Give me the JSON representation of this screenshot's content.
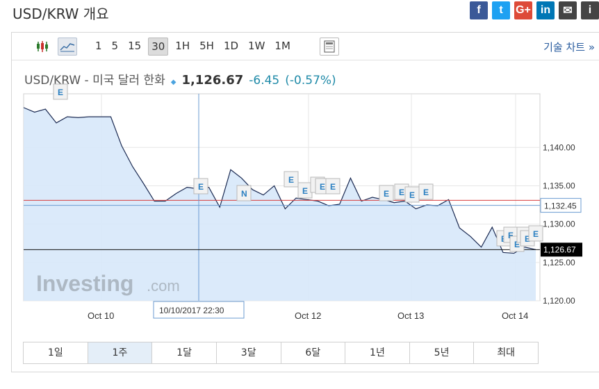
{
  "page": {
    "title": "USD/KRW 개요"
  },
  "social": [
    {
      "name": "facebook-icon",
      "glyph": "f",
      "color": "#3b5998"
    },
    {
      "name": "twitter-icon",
      "glyph": "t",
      "color": "#1da1f2"
    },
    {
      "name": "google-plus-icon",
      "glyph": "G+",
      "color": "#dd4b39"
    },
    {
      "name": "linkedin-icon",
      "glyph": "in",
      "color": "#0077b5"
    },
    {
      "name": "email-icon",
      "glyph": "✉",
      "color": "#444444"
    },
    {
      "name": "info-icon",
      "glyph": "i",
      "color": "#444444"
    }
  ],
  "toolbar": {
    "intervals": [
      "1",
      "5",
      "15",
      "30",
      "1H",
      "5H",
      "1D",
      "1W",
      "1M"
    ],
    "active_interval": "30",
    "technical_chart": "기술 차트 »"
  },
  "quote": {
    "name": "USD/KRW - 미국 달러 한화",
    "price": "1,126.67",
    "change": "-6.45",
    "change_pct": "(-0.57%)"
  },
  "chart_data": {
    "type": "area",
    "yticks": [
      "1,140.00",
      "1,135.00",
      "1,130.00",
      "1,125.00",
      "1,120.00"
    ],
    "ylim": [
      1120,
      1147
    ],
    "xticks": [
      "Oct 10",
      "Oct 12",
      "Oct 13",
      "Oct 14"
    ],
    "series": [
      {
        "values": [
          1145.2,
          1144.6,
          1145.0,
          1143.2,
          1144.0,
          1143.9,
          1144.0,
          1144.0,
          1144.0,
          1140.2,
          1137.5,
          1135.3,
          1133.0,
          1133.0,
          1134.0,
          1134.8,
          1134.6,
          1134.8,
          1132.2,
          1137.1,
          1136.0,
          1134.5,
          1133.8,
          1135.0,
          1132.0,
          1133.4,
          1133.2,
          1133.0,
          1132.4,
          1132.6,
          1136.0,
          1133.0,
          1133.5,
          1133.2,
          1132.8,
          1133.0,
          1132.0,
          1132.5,
          1132.4,
          1133.2,
          1129.5,
          1128.4,
          1127.0,
          1129.6,
          1126.3,
          1126.2,
          1127.0,
          1126.67
        ]
      }
    ],
    "crosshair_date": "10/10/2017 22:30",
    "crosshair_value": "1,132.45",
    "last_value": "1,126.67",
    "red_line_value": 1133.1,
    "event_markers": [
      "E",
      "E",
      "N",
      "E",
      "E",
      "E",
      "E",
      "E",
      "E",
      "E",
      "E",
      "E",
      "E",
      "E",
      "E",
      "E",
      "E",
      "E"
    ],
    "watermark": "Investing",
    "watermark_suffix": ".com",
    "colors": {
      "line": "#1b2a52",
      "fill": "#d7e8fa",
      "red": "#d83b3b",
      "last": "#111111"
    }
  },
  "ranges": [
    "1일",
    "1주",
    "1달",
    "3달",
    "6달",
    "1년",
    "5년",
    "최대"
  ],
  "active_range": "1주"
}
